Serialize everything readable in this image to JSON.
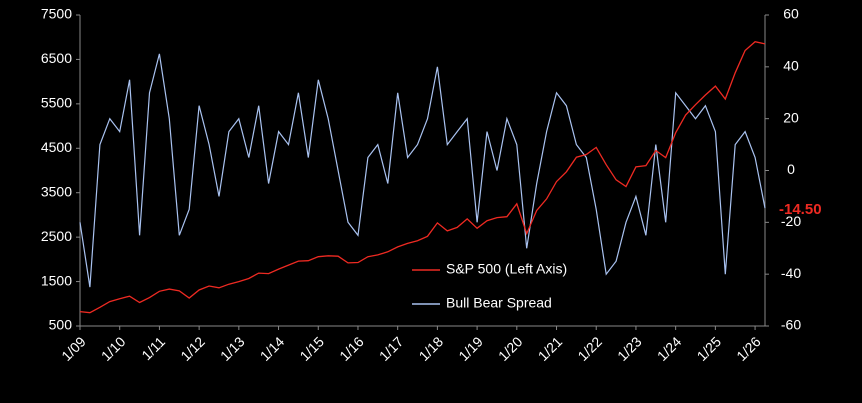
{
  "chart_data": {
    "type": "line",
    "categories": [
      "1/09",
      null,
      null,
      null,
      "1/10",
      null,
      null,
      null,
      "1/11",
      null,
      null,
      null,
      "1/12",
      null,
      null,
      null,
      "1/13",
      null,
      null,
      null,
      "1/14",
      null,
      null,
      null,
      "1/15",
      null,
      null,
      null,
      "1/16",
      null,
      null,
      null,
      "1/17",
      null,
      null,
      null,
      "1/18",
      null,
      null,
      null,
      "1/19",
      null,
      null,
      null,
      "1/20",
      null,
      null,
      null,
      "1/21",
      null,
      null,
      null,
      "1/22",
      null,
      null,
      null,
      "1/23",
      null,
      null,
      null,
      "1/24",
      null,
      null,
      null,
      "1/25",
      null,
      null,
      null,
      "1/26",
      null
    ],
    "series": [
      {
        "name": "S&P 500 (Left Axis)",
        "color": "#ee2a22",
        "axis": "y",
        "values": [
          825,
          800,
          920,
          1050,
          1115,
          1170,
          1030,
          1140,
          1280,
          1330,
          1290,
          1130,
          1310,
          1400,
          1360,
          1440,
          1500,
          1570,
          1690,
          1680,
          1780,
          1870,
          1960,
          1970,
          2060,
          2080,
          2070,
          1920,
          1930,
          2060,
          2100,
          2170,
          2280,
          2360,
          2420,
          2520,
          2820,
          2640,
          2720,
          2910,
          2700,
          2870,
          2940,
          2960,
          3250,
          2580,
          3100,
          3360,
          3750,
          3970,
          4300,
          4360,
          4520,
          4130,
          3790,
          3640,
          4080,
          4110,
          4450,
          4290,
          4850,
          5250,
          5480,
          5700,
          5900,
          5610,
          6200,
          6700,
          6900,
          6850
        ]
      },
      {
        "name": "Bull Bear Spread",
        "color": "#a9c2f0",
        "axis": "y2",
        "values": [
          -20,
          -45,
          10,
          20,
          15,
          35,
          -25,
          30,
          45,
          20,
          -25,
          -15,
          25,
          10,
          -10,
          15,
          20,
          5,
          25,
          -5,
          15,
          10,
          30,
          5,
          35,
          20,
          0,
          -20,
          -25,
          5,
          10,
          -5,
          30,
          5,
          10,
          20,
          40,
          10,
          15,
          20,
          -20,
          15,
          0,
          20,
          10,
          -30,
          -5,
          15,
          30,
          25,
          10,
          5,
          -15,
          -40,
          -35,
          -20,
          -10,
          -25,
          10,
          -20,
          30,
          25,
          20,
          25,
          15,
          -40,
          10,
          15,
          5,
          -14.5
        ],
        "value_labels": [
          null,
          null,
          null,
          null,
          null,
          null,
          null,
          null,
          null,
          null,
          null,
          null,
          null,
          null,
          null,
          null,
          null,
          null,
          null,
          null,
          null,
          null,
          null,
          null,
          null,
          null,
          null,
          null,
          null,
          null,
          null,
          null,
          null,
          null,
          null,
          null,
          null,
          null,
          null,
          null,
          null,
          null,
          null,
          null,
          null,
          null,
          null,
          null,
          null,
          null,
          null,
          null,
          null,
          null,
          null,
          null,
          null,
          null,
          null,
          null,
          null,
          null,
          null,
          null,
          null,
          null,
          null,
          null,
          null,
          "-14.50"
        ]
      }
    ],
    "ylim": [
      500,
      7500
    ],
    "yticks": [
      500,
      1500,
      2500,
      3500,
      4500,
      5500,
      6500,
      7500
    ],
    "y2lim": [
      -60,
      60
    ],
    "y2ticks": [
      -60,
      -40,
      -20,
      0,
      20,
      40,
      60
    ],
    "grid": false,
    "legend": "lower center"
  }
}
